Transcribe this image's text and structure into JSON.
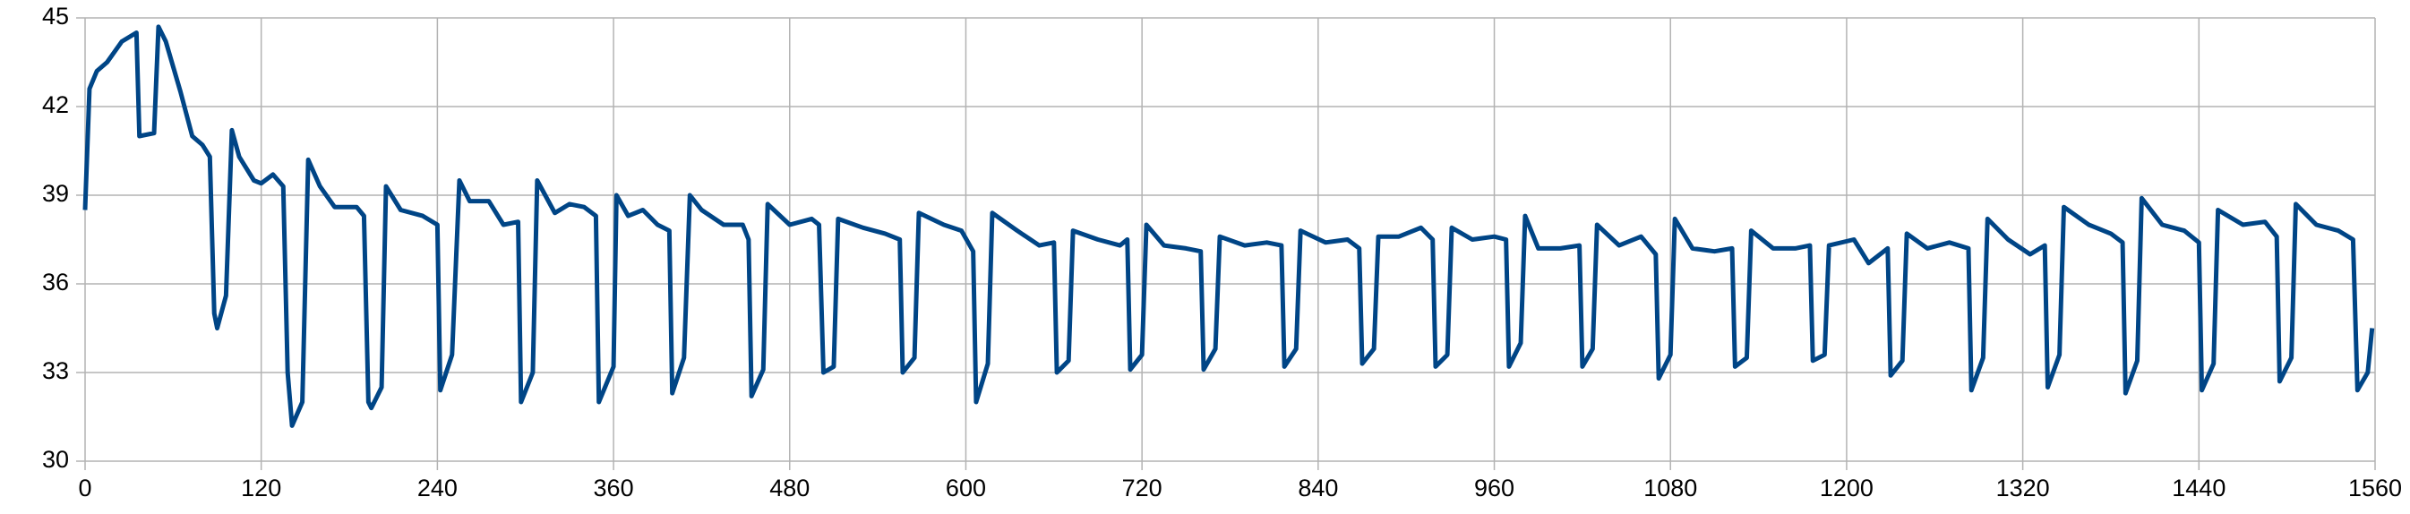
{
  "chart_data": {
    "type": "line",
    "x": [
      0,
      3,
      8,
      15,
      25,
      35,
      37,
      47,
      50,
      55,
      65,
      73,
      80,
      85,
      88,
      90,
      96,
      100,
      105,
      115,
      120,
      128,
      135,
      138,
      141,
      148,
      152,
      160,
      170,
      185,
      190,
      193,
      195,
      202,
      205,
      215,
      230,
      240,
      242,
      250,
      255,
      262,
      275,
      285,
      295,
      297,
      305,
      308,
      320,
      330,
      340,
      348,
      350,
      360,
      362,
      370,
      380,
      390,
      398,
      400,
      408,
      412,
      420,
      435,
      448,
      452,
      454,
      462,
      465,
      480,
      495,
      500,
      503,
      510,
      513,
      530,
      545,
      555,
      557,
      565,
      568,
      585,
      597,
      605,
      607,
      615,
      618,
      635,
      650,
      660,
      662,
      670,
      673,
      690,
      705,
      710,
      712,
      720,
      723,
      735,
      750,
      760,
      762,
      770,
      773,
      790,
      805,
      815,
      817,
      825,
      828,
      845,
      860,
      868,
      870,
      878,
      881,
      895,
      910,
      918,
      920,
      928,
      931,
      945,
      960,
      968,
      970,
      978,
      981,
      990,
      1005,
      1018,
      1020,
      1027,
      1030,
      1045,
      1060,
      1070,
      1072,
      1080,
      1083,
      1095,
      1110,
      1122,
      1124,
      1132,
      1135,
      1150,
      1165,
      1175,
      1177,
      1185,
      1188,
      1205,
      1215,
      1228,
      1230,
      1238,
      1241,
      1255,
      1270,
      1283,
      1285,
      1293,
      1296,
      1310,
      1325,
      1335,
      1337,
      1345,
      1348,
      1365,
      1380,
      1388,
      1390,
      1398,
      1401,
      1415,
      1430,
      1440,
      1442,
      1450,
      1453,
      1470,
      1485,
      1493,
      1495,
      1503,
      1506,
      1520,
      1535,
      1545,
      1548,
      1555,
      1558
    ],
    "series": [
      {
        "color": "#004586",
        "values": [
          38.5,
          42.6,
          43.2,
          43.5,
          44.2,
          44.5,
          41.0,
          41.1,
          44.7,
          44.2,
          42.5,
          41,
          40.7,
          40.3,
          35,
          34.5,
          35.6,
          41.2,
          40.3,
          39.5,
          39.4,
          39.7,
          39.3,
          33,
          31.2,
          32,
          40.2,
          39.3,
          38.6,
          38.6,
          38.3,
          32,
          31.8,
          32.5,
          39.3,
          38.5,
          38.3,
          38,
          32.4,
          33.6,
          39.5,
          38.8,
          38.8,
          38,
          38.1,
          32,
          33,
          39.5,
          38.4,
          38.7,
          38.6,
          38.3,
          32,
          33.2,
          39,
          38.3,
          38.5,
          38,
          37.8,
          32.3,
          33.5,
          39,
          38.5,
          38,
          38,
          37.5,
          32.2,
          33.1,
          38.7,
          38,
          38.2,
          38,
          33,
          33.2,
          38.2,
          37.9,
          37.7,
          37.5,
          33,
          33.5,
          38.4,
          38,
          37.8,
          37.1,
          32,
          33.3,
          38.4,
          37.8,
          37.3,
          37.4,
          33,
          33.4,
          37.8,
          37.5,
          37.3,
          37.5,
          33.1,
          33.6,
          38,
          37.3,
          37.2,
          37.1,
          33.1,
          33.8,
          37.6,
          37.3,
          37.4,
          37.3,
          33.2,
          33.8,
          37.8,
          37.4,
          37.5,
          37.2,
          33.3,
          33.8,
          37.6,
          37.6,
          37.9,
          37.5,
          33.2,
          33.6,
          37.9,
          37.5,
          37.6,
          37.5,
          33.2,
          34,
          38.3,
          37.2,
          37.2,
          37.3,
          33.2,
          33.8,
          38,
          37.3,
          37.6,
          37,
          32.8,
          33.6,
          38.2,
          37.2,
          37.1,
          37.2,
          33.2,
          33.5,
          37.8,
          37.2,
          37.2,
          37.3,
          33.4,
          33.6,
          37.3,
          37.5,
          36.7,
          37.2,
          32.9,
          33.4,
          37.7,
          37.2,
          37.4,
          37.2,
          32.4,
          33.5,
          38.2,
          37.5,
          37,
          37.3,
          32.5,
          33.6,
          38.6,
          38,
          37.7,
          37.4,
          32.3,
          33.4,
          38.9,
          38,
          37.8,
          37.4,
          32.4,
          33.3,
          38.5,
          38,
          38.1,
          37.6,
          32.7,
          33.5,
          38.7,
          38,
          37.8,
          37.5,
          32.4,
          33,
          34.5
        ]
      }
    ],
    "xlim": [
      0,
      1560
    ],
    "xticks": [
      0,
      120,
      240,
      360,
      480,
      600,
      720,
      840,
      960,
      1080,
      1200,
      1320,
      1440,
      1560
    ],
    "ylim": [
      30,
      45
    ],
    "yticks": [
      30,
      33,
      36,
      39,
      42,
      45
    ],
    "grid": true
  }
}
